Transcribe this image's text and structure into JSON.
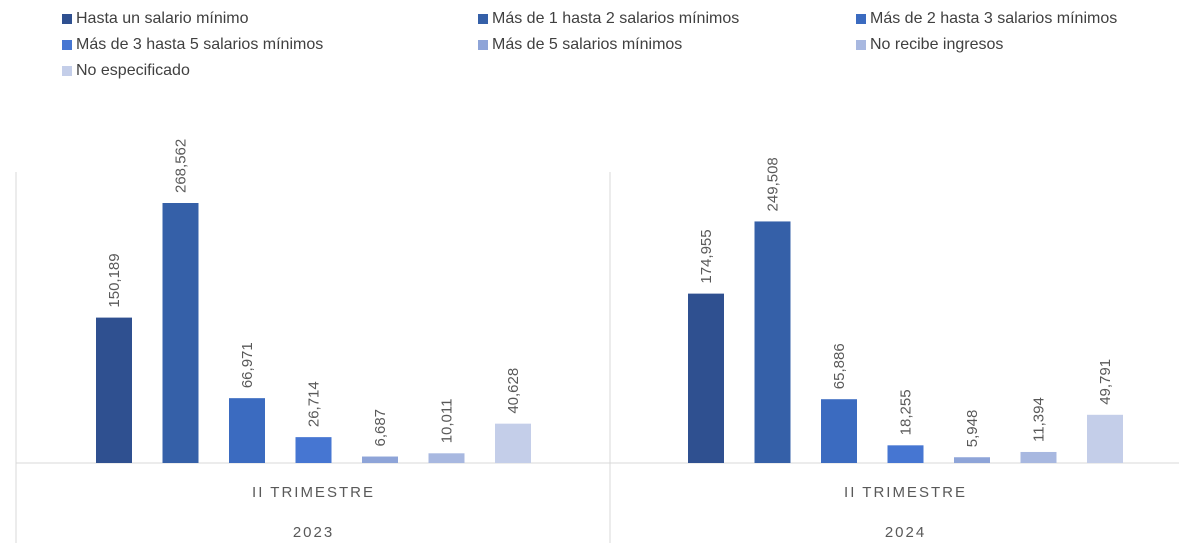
{
  "chart_data": {
    "type": "bar",
    "categories": [
      "II TRIMESTRE",
      "II TRIMESTRE"
    ],
    "groups": [
      "2023",
      "2024"
    ],
    "series": [
      {
        "name": "Hasta un salario mínimo",
        "color": "#2f5090",
        "values": [
          150189,
          174955
        ],
        "value_labels": [
          "150,189",
          "174,955"
        ]
      },
      {
        "name": "Más de 1 hasta 2 salarios mínimos",
        "color": "#3560a8",
        "values": [
          268562,
          249508
        ],
        "value_labels": [
          "268,562",
          "249,508"
        ]
      },
      {
        "name": "Más de 2 hasta 3 salarios mínimos",
        "color": "#3b6bc0",
        "values": [
          66971,
          65886
        ],
        "value_labels": [
          "66,971",
          "65,886"
        ]
      },
      {
        "name": "Más de 3 hasta 5 salarios mínimos",
        "color": "#4676d2",
        "values": [
          26714,
          18255
        ],
        "value_labels": [
          "26,714",
          "18,255"
        ]
      },
      {
        "name": "Más de 5 salarios mínimos",
        "color": "#8ea4d8",
        "values": [
          6687,
          5948
        ],
        "value_labels": [
          "6,687",
          "5,948"
        ]
      },
      {
        "name": "No recibe ingresos",
        "color": "#a8b8e0",
        "values": [
          10011,
          11394
        ],
        "value_labels": [
          "10,011",
          "11,394"
        ]
      },
      {
        "name": "No especificado",
        "color": "#c4cee9",
        "values": [
          40628,
          49791
        ],
        "value_labels": [
          "40,628",
          "49,791"
        ]
      }
    ]
  }
}
